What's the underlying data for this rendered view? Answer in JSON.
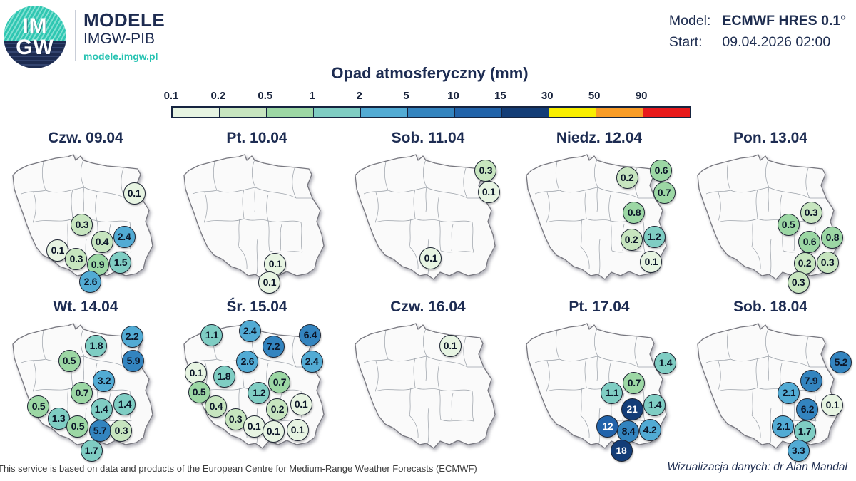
{
  "header": {
    "logo_text_top": "IM",
    "logo_text_bottom": "GW",
    "brand_title": "MODELE",
    "brand_subtitle": "IMGW-PIB",
    "brand_url": "modele.imgw.pl",
    "model_label": "Model:",
    "model_value": "ECMWF HRES 0.1°",
    "start_label": "Start:",
    "start_value": "09.04.2026 02:00"
  },
  "chart_data": {
    "type": "map-bubble-grid",
    "title": "Opad atmosferyczny (mm)",
    "unit": "mm",
    "legend_position": "top",
    "scale": {
      "tick_labels": [
        "0.1",
        "0.2",
        "0.5",
        "1",
        "2",
        "5",
        "10",
        "15",
        "30",
        "50",
        "90"
      ],
      "thresholds": [
        0.1,
        0.2,
        0.5,
        1,
        2,
        5,
        10,
        15,
        30,
        50,
        90
      ],
      "segment_colors": [
        "#e7f4e2",
        "#c7e5bf",
        "#9cd7a4",
        "#7fcdc3",
        "#52abd4",
        "#3384bf",
        "#2163aa",
        "#133d77",
        "#f8ee00",
        "#f89c27",
        "#e81a1c"
      ],
      "white_text_min": 10
    },
    "days": [
      {
        "label": "Czw. 09.04",
        "bubbles": [
          {
            "v": "0.1",
            "x": 79.6,
            "y": 28
          },
          {
            "v": "0.3",
            "x": 47.8,
            "y": 50
          },
          {
            "v": "0.4",
            "x": 60,
            "y": 62
          },
          {
            "v": "2.4",
            "x": 73.5,
            "y": 58.5
          },
          {
            "v": "0.1",
            "x": 33,
            "y": 68
          },
          {
            "v": "0.3",
            "x": 44.3,
            "y": 74
          },
          {
            "v": "0.9",
            "x": 57.4,
            "y": 78
          },
          {
            "v": "1.5",
            "x": 71.3,
            "y": 76.5
          },
          {
            "v": "2.6",
            "x": 53,
            "y": 90
          }
        ]
      },
      {
        "label": "Pt. 10.04",
        "bubbles": [
          {
            "v": "0.1",
            "x": 61.3,
            "y": 77.5
          },
          {
            "v": "0.1",
            "x": 57.8,
            "y": 90.5
          }
        ]
      },
      {
        "label": "Sob. 11.04",
        "bubbles": [
          {
            "v": "0.3",
            "x": 85.2,
            "y": 12
          },
          {
            "v": "0.1",
            "x": 87,
            "y": 27
          },
          {
            "v": "0.1",
            "x": 51.7,
            "y": 73.5
          }
        ]
      },
      {
        "label": "Niedz. 12.04",
        "bubbles": [
          {
            "v": "0.2",
            "x": 67,
            "y": 17
          },
          {
            "v": "0.6",
            "x": 87.8,
            "y": 12
          },
          {
            "v": "0.7",
            "x": 89.6,
            "y": 27.5
          },
          {
            "v": "0.8",
            "x": 71.3,
            "y": 41.5
          },
          {
            "v": "0.2",
            "x": 69.6,
            "y": 60.5
          },
          {
            "v": "1.2",
            "x": 83.5,
            "y": 58.5
          },
          {
            "v": "0.1",
            "x": 81.7,
            "y": 76
          }
        ]
      },
      {
        "label": "Pon. 13.04",
        "bubbles": [
          {
            "v": "0.5",
            "x": 60.9,
            "y": 50
          },
          {
            "v": "0.3",
            "x": 74.8,
            "y": 41.5
          },
          {
            "v": "0.6",
            "x": 73.9,
            "y": 62
          },
          {
            "v": "0.8",
            "x": 87.8,
            "y": 59
          },
          {
            "v": "0.2",
            "x": 70.9,
            "y": 77
          },
          {
            "v": "0.3",
            "x": 84.8,
            "y": 76.5
          },
          {
            "v": "0.3",
            "x": 67,
            "y": 90.5
          }
        ]
      },
      {
        "label": "Wt. 14.04",
        "bubbles": [
          {
            "v": "1.8",
            "x": 56.5,
            "y": 16.5
          },
          {
            "v": "2.2",
            "x": 78.3,
            "y": 10
          },
          {
            "v": "0.5",
            "x": 40,
            "y": 27
          },
          {
            "v": "5.9",
            "x": 79.1,
            "y": 27
          },
          {
            "v": "3.2",
            "x": 61.3,
            "y": 41
          },
          {
            "v": "0.7",
            "x": 47.8,
            "y": 49.5
          },
          {
            "v": "0.5",
            "x": 21.3,
            "y": 59
          },
          {
            "v": "1.4",
            "x": 59.6,
            "y": 61
          },
          {
            "v": "1.4",
            "x": 73.9,
            "y": 57.5
          },
          {
            "v": "1.3",
            "x": 33.5,
            "y": 67.5
          },
          {
            "v": "0.5",
            "x": 45.2,
            "y": 73
          },
          {
            "v": "5.7",
            "x": 58.7,
            "y": 76
          },
          {
            "v": "0.3",
            "x": 71.7,
            "y": 76
          },
          {
            "v": "1.7",
            "x": 53.5,
            "y": 90
          }
        ]
      },
      {
        "label": "Śr. 15.04",
        "bubbles": [
          {
            "v": "1.1",
            "x": 22.6,
            "y": 9
          },
          {
            "v": "2.4",
            "x": 45.7,
            "y": 6
          },
          {
            "v": "7.2",
            "x": 60,
            "y": 17
          },
          {
            "v": "6.4",
            "x": 82.6,
            "y": 9
          },
          {
            "v": "2.6",
            "x": 44.3,
            "y": 27.5
          },
          {
            "v": "2.4",
            "x": 83.5,
            "y": 27.5
          },
          {
            "v": "0.1",
            "x": 13,
            "y": 35.5
          },
          {
            "v": "1.8",
            "x": 30,
            "y": 38
          },
          {
            "v": "0.7",
            "x": 63.9,
            "y": 42
          },
          {
            "v": "0.5",
            "x": 14.8,
            "y": 49
          },
          {
            "v": "1.2",
            "x": 51.3,
            "y": 49.5
          },
          {
            "v": "0.4",
            "x": 25.2,
            "y": 59
          },
          {
            "v": "0.2",
            "x": 62.6,
            "y": 61
          },
          {
            "v": "0.1",
            "x": 77,
            "y": 57.5
          },
          {
            "v": "0.3",
            "x": 37,
            "y": 68
          },
          {
            "v": "0.1",
            "x": 48.3,
            "y": 73
          },
          {
            "v": "0.1",
            "x": 60,
            "y": 76.5
          },
          {
            "v": "0.1",
            "x": 74.8,
            "y": 75.5
          }
        ]
      },
      {
        "label": "Czw. 16.04",
        "bubbles": [
          {
            "v": "0.1",
            "x": 63.5,
            "y": 16.5
          }
        ]
      },
      {
        "label": "Pt. 17.04",
        "bubbles": [
          {
            "v": "1.4",
            "x": 90.4,
            "y": 28.5
          },
          {
            "v": "0.7",
            "x": 71.3,
            "y": 42.5
          },
          {
            "v": "1.1",
            "x": 57.8,
            "y": 49.5
          },
          {
            "v": "21",
            "x": 70,
            "y": 61
          },
          {
            "v": "1.4",
            "x": 83.9,
            "y": 58
          },
          {
            "v": "12",
            "x": 55.2,
            "y": 73
          },
          {
            "v": "8.4",
            "x": 67.8,
            "y": 76.5
          },
          {
            "v": "4.2",
            "x": 80.9,
            "y": 75.5
          },
          {
            "v": "18",
            "x": 63.5,
            "y": 90
          }
        ]
      },
      {
        "label": "Sob. 18.04",
        "bubbles": [
          {
            "v": "5.2",
            "x": 93,
            "y": 28
          },
          {
            "v": "7.9",
            "x": 74.8,
            "y": 41
          },
          {
            "v": "2.1",
            "x": 61.3,
            "y": 49.5
          },
          {
            "v": "6.2",
            "x": 72.6,
            "y": 61
          },
          {
            "v": "0.1",
            "x": 87.8,
            "y": 58
          },
          {
            "v": "2.1",
            "x": 57.8,
            "y": 73
          },
          {
            "v": "1.7",
            "x": 70.9,
            "y": 76.5
          },
          {
            "v": "3.3",
            "x": 67,
            "y": 90
          }
        ]
      }
    ]
  },
  "footer": {
    "attribution": "This service is based on data and products of the European Centre for Medium-Range Weather Forecasts (ECMWF)",
    "credit": "Wizualizacja danych: dr Alan Mandal"
  }
}
